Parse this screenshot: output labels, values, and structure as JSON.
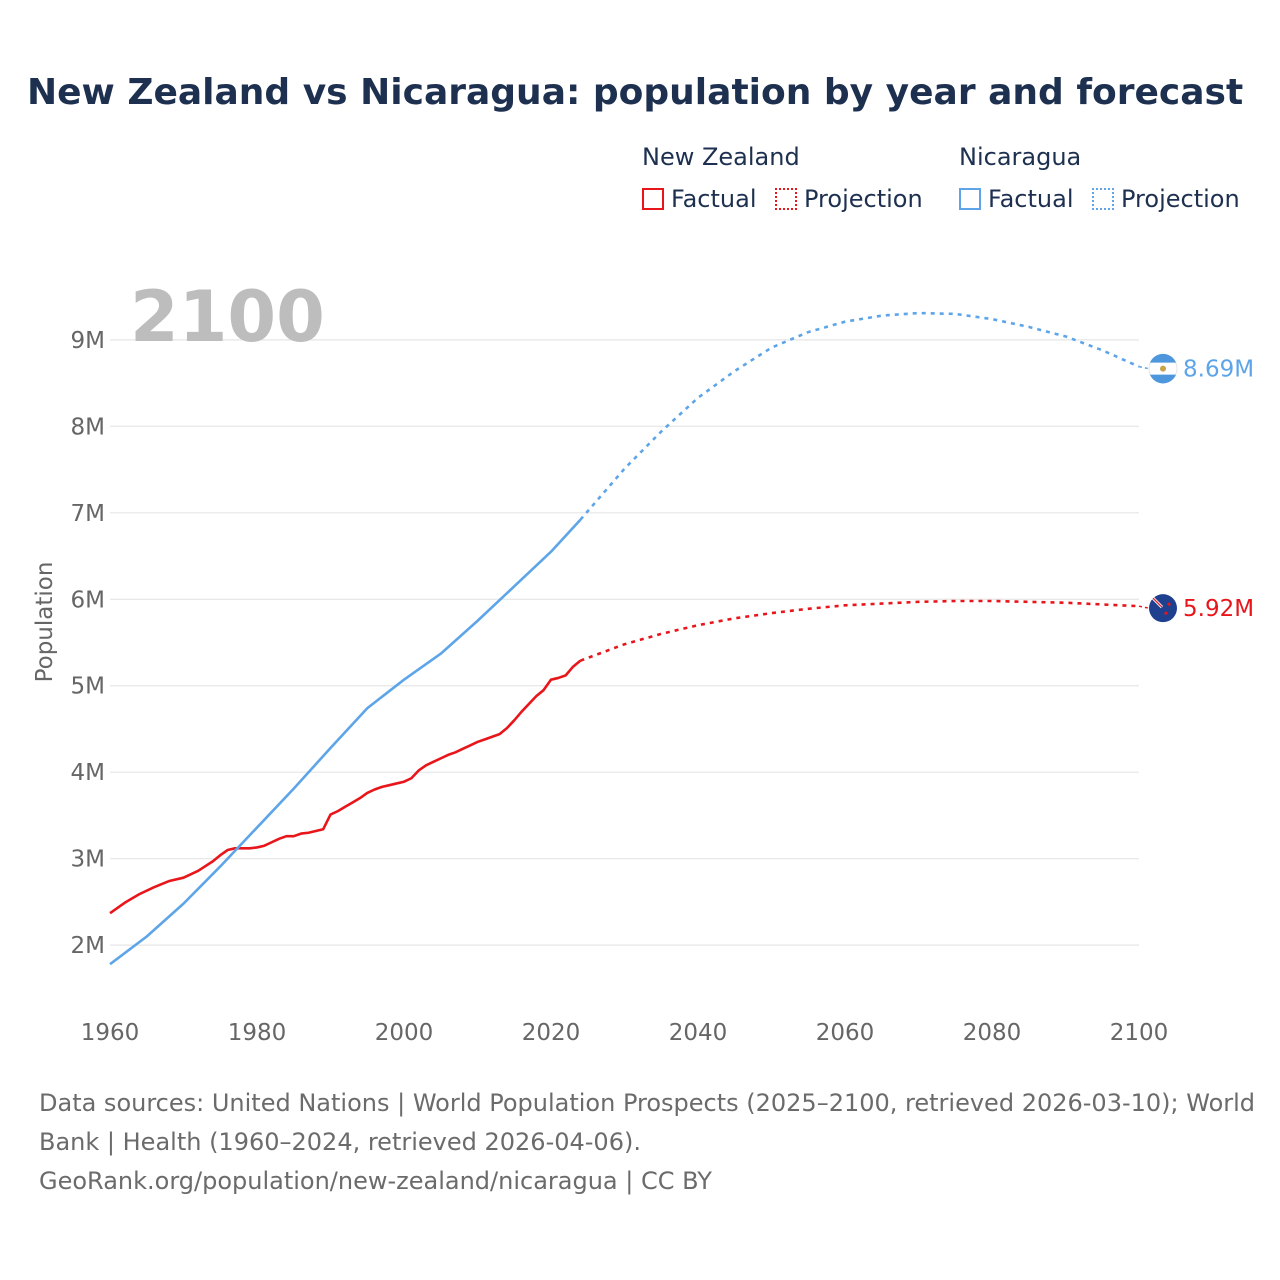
{
  "title": "New Zealand vs Nicaragua: population by year and forecast",
  "legend": {
    "groups": [
      {
        "name": "New Zealand",
        "factual": "Factual",
        "projection": "Projection",
        "color": "#e8161b"
      },
      {
        "name": "Nicaragua",
        "factual": "Factual",
        "projection": "Projection",
        "color": "#5da5e8"
      }
    ]
  },
  "year_display": "2100",
  "footer": {
    "line1": "Data sources: United Nations | World Population Prospects (2025–2100, retrieved 2026-03-10); World",
    "line2": "Bank | Health (1960–2024, retrieved 2026-04-06).",
    "line3": "GeoRank.org/population/new-zealand/nicaragua | CC BY"
  },
  "chart_data": {
    "type": "line",
    "title": "New Zealand vs Nicaragua: population by year and forecast",
    "xlabel": "",
    "ylabel": "Population",
    "xlim": [
      1960,
      2100
    ],
    "ylim": [
      1250000,
      9750000
    ],
    "x_ticks": [
      1960,
      1980,
      2000,
      2020,
      2040,
      2060,
      2080,
      2100
    ],
    "x_tick_labels": [
      "1960",
      "1980",
      "2000",
      "2020",
      "2040",
      "2060",
      "2080",
      "2100"
    ],
    "y_ticks": [
      2000000,
      3000000,
      4000000,
      5000000,
      6000000,
      7000000,
      8000000,
      9000000
    ],
    "y_tick_labels": [
      "2M",
      "3M",
      "4M",
      "5M",
      "6M",
      "7M",
      "8M",
      "9M"
    ],
    "grid": true,
    "series": [
      {
        "name": "New Zealand",
        "color": "#e8161b",
        "end_label": "5.92M",
        "factual": {
          "x": [
            1960,
            1962,
            1964,
            1966,
            1968,
            1970,
            1972,
            1974,
            1975,
            1976,
            1977,
            1978,
            1979,
            1980,
            1981,
            1982,
            1983,
            1984,
            1985,
            1986,
            1987,
            1988,
            1989,
            1990,
            1991,
            1992,
            1993,
            1994,
            1995,
            1996,
            1997,
            1998,
            1999,
            2000,
            2001,
            2002,
            2003,
            2004,
            2005,
            2006,
            2007,
            2008,
            2009,
            2010,
            2011,
            2012,
            2013,
            2014,
            2015,
            2016,
            2017,
            2018,
            2019,
            2020,
            2021,
            2022,
            2023,
            2024
          ],
          "y": [
            2370000,
            2490000,
            2590000,
            2670000,
            2740000,
            2780000,
            2860000,
            2970000,
            3040000,
            3100000,
            3120000,
            3120000,
            3120000,
            3130000,
            3150000,
            3190000,
            3230000,
            3260000,
            3260000,
            3290000,
            3300000,
            3320000,
            3340000,
            3510000,
            3550000,
            3600000,
            3650000,
            3700000,
            3760000,
            3800000,
            3830000,
            3850000,
            3870000,
            3890000,
            3930000,
            4020000,
            4080000,
            4120000,
            4160000,
            4200000,
            4230000,
            4270000,
            4310000,
            4350000,
            4380000,
            4410000,
            4440000,
            4510000,
            4600000,
            4700000,
            4790000,
            4880000,
            4950000,
            5070000,
            5090000,
            5120000,
            5220000,
            5290000
          ]
        },
        "projection": {
          "x": [
            2024,
            2030,
            2035,
            2040,
            2045,
            2050,
            2055,
            2060,
            2065,
            2070,
            2075,
            2080,
            2085,
            2090,
            2095,
            2100
          ],
          "y": [
            5290000,
            5480000,
            5600000,
            5700000,
            5780000,
            5840000,
            5890000,
            5930000,
            5950000,
            5970000,
            5980000,
            5980000,
            5970000,
            5960000,
            5940000,
            5920000
          ]
        }
      },
      {
        "name": "Nicaragua",
        "color": "#5da5e8",
        "end_label": "8.69M",
        "factual": {
          "x": [
            1960,
            1965,
            1970,
            1975,
            1980,
            1985,
            1990,
            1995,
            2000,
            2005,
            2010,
            2015,
            2020,
            2024
          ],
          "y": [
            1780000,
            2100000,
            2480000,
            2910000,
            3360000,
            3810000,
            4280000,
            4740000,
            5070000,
            5370000,
            5750000,
            6150000,
            6550000,
            6920000
          ]
        },
        "projection": {
          "x": [
            2024,
            2030,
            2035,
            2040,
            2045,
            2050,
            2055,
            2060,
            2065,
            2070,
            2075,
            2080,
            2085,
            2090,
            2095,
            2100
          ],
          "y": [
            6920000,
            7510000,
            7940000,
            8330000,
            8640000,
            8910000,
            9090000,
            9210000,
            9280000,
            9310000,
            9300000,
            9240000,
            9150000,
            9040000,
            8880000,
            8690000
          ]
        }
      }
    ]
  }
}
